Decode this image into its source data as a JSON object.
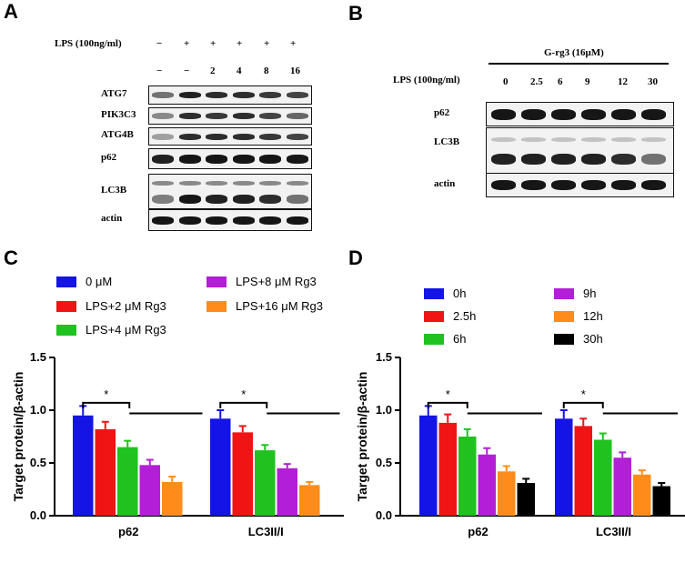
{
  "panels": {
    "a": "A",
    "b": "B",
    "c": "C",
    "d": "D"
  },
  "blot_a": {
    "treatment_label": "LPS (100ng/ml)",
    "lps_row": [
      "−",
      "+",
      "+",
      "+",
      "+",
      "+"
    ],
    "rg3_row": [
      "−",
      "−",
      "2",
      "4",
      "8",
      "16"
    ],
    "proteins": [
      "ATG7",
      "PIK3C3",
      "ATG4B",
      "p62",
      "LC3B",
      "actin"
    ]
  },
  "blot_b": {
    "group_label": "G-rg3 (16μM)",
    "treatment_label": "LPS (100ng/ml)",
    "time_row": [
      "0",
      "2.5",
      "6",
      "9",
      "12",
      "30"
    ],
    "proteins": [
      "p62",
      "LC3B",
      "actin"
    ]
  },
  "chart_data": [
    {
      "type": "bar",
      "ylabel": "Target protein/β-actin",
      "ylim": [
        0,
        1.5
      ],
      "yticks": [
        "0.0",
        "0.5",
        "1.0",
        "1.5"
      ],
      "categories": [
        "p62",
        "LC3II/I"
      ],
      "legend_placement": "top",
      "significance": "*",
      "series": [
        {
          "name": "0 μM",
          "color": "#1414e6",
          "values": [
            0.95,
            0.92
          ],
          "errors": [
            0.09,
            0.08
          ]
        },
        {
          "name": "LPS+2 μM Rg3",
          "color": "#f01414",
          "values": [
            0.82,
            0.79
          ],
          "errors": [
            0.07,
            0.06
          ]
        },
        {
          "name": "LPS+4 μM Rg3",
          "color": "#1fc21f",
          "values": [
            0.65,
            0.62
          ],
          "errors": [
            0.06,
            0.05
          ]
        },
        {
          "name": "LPS+8 μM Rg3",
          "color": "#b31fd6",
          "values": [
            0.48,
            0.45
          ],
          "errors": [
            0.05,
            0.04
          ]
        },
        {
          "name": "LPS+16 μM Rg3",
          "color": "#ff8c1a",
          "values": [
            0.32,
            0.29
          ],
          "errors": [
            0.05,
            0.03
          ]
        }
      ]
    },
    {
      "type": "bar",
      "ylabel": "Target protein/β-actin",
      "ylim": [
        0,
        1.5
      ],
      "yticks": [
        "0.0",
        "0.5",
        "1.0",
        "1.5"
      ],
      "categories": [
        "p62",
        "LC3II/I"
      ],
      "legend_placement": "top",
      "significance": "*",
      "series": [
        {
          "name": "0h",
          "color": "#1414e6",
          "values": [
            0.95,
            0.92
          ],
          "errors": [
            0.09,
            0.08
          ]
        },
        {
          "name": "2.5h",
          "color": "#f01414",
          "values": [
            0.88,
            0.85
          ],
          "errors": [
            0.08,
            0.07
          ]
        },
        {
          "name": "6h",
          "color": "#1fc21f",
          "values": [
            0.75,
            0.72
          ],
          "errors": [
            0.07,
            0.06
          ]
        },
        {
          "name": "9h",
          "color": "#b31fd6",
          "values": [
            0.58,
            0.55
          ],
          "errors": [
            0.06,
            0.05
          ]
        },
        {
          "name": "12h",
          "color": "#ff8c1a",
          "values": [
            0.42,
            0.39
          ],
          "errors": [
            0.05,
            0.04
          ]
        },
        {
          "name": "30h",
          "color": "#000000",
          "values": [
            0.31,
            0.28
          ],
          "errors": [
            0.04,
            0.03
          ]
        }
      ]
    }
  ]
}
